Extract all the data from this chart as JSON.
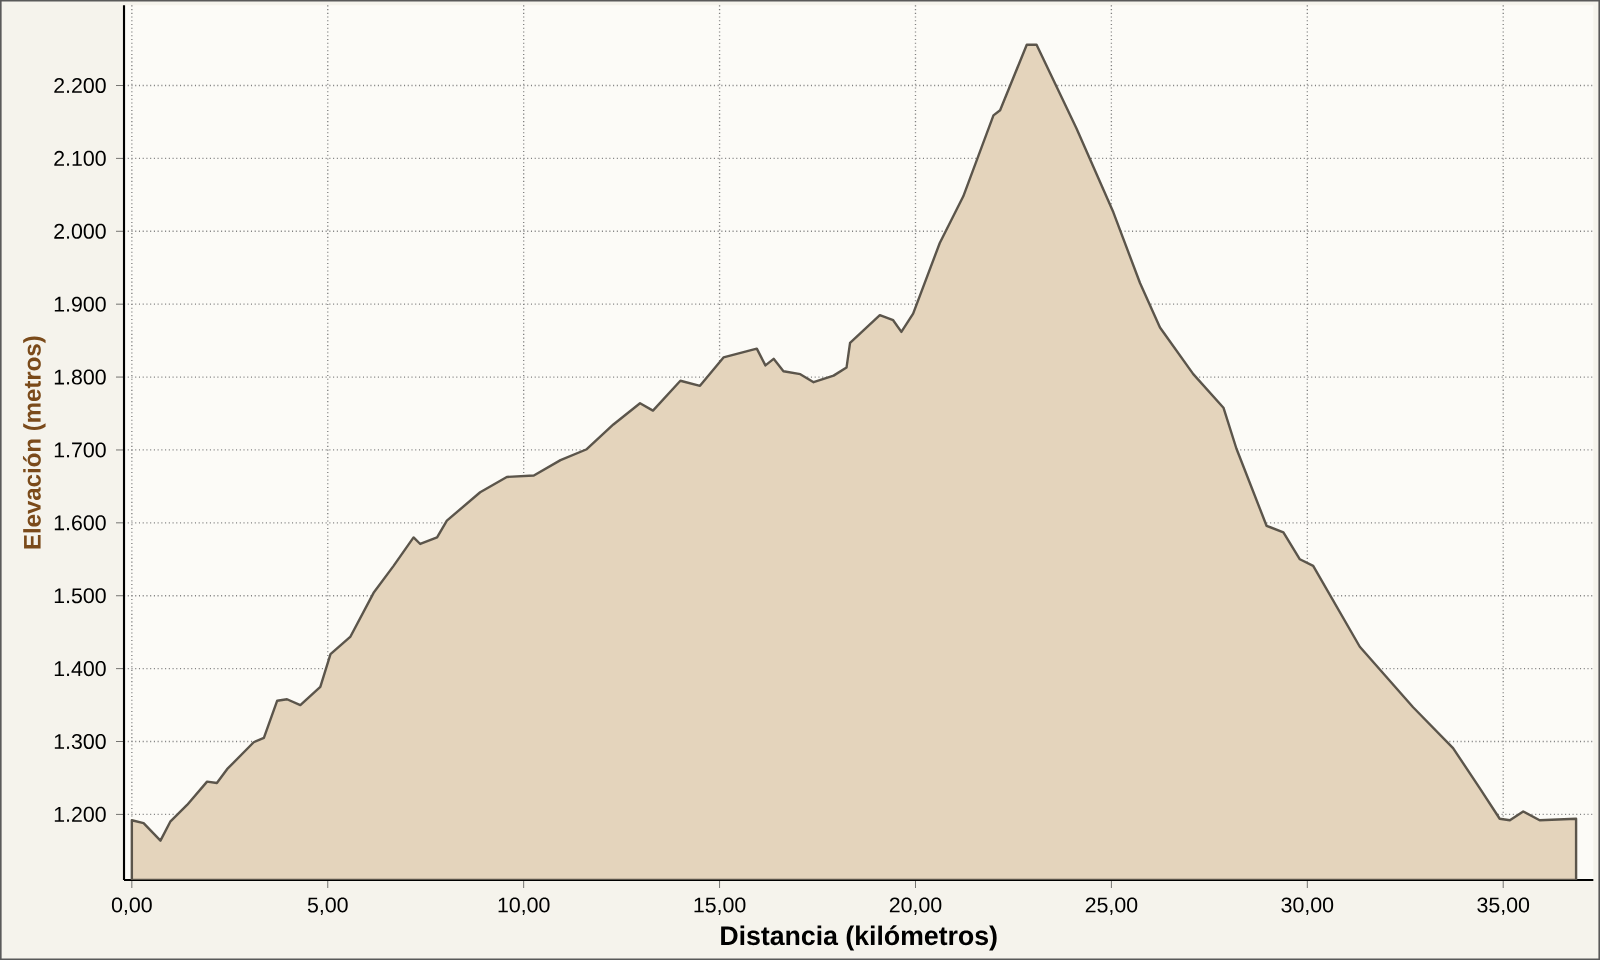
{
  "chart_data": {
    "type": "area",
    "xlabel": "Distancia (kilómetros)",
    "ylabel": "Elevación (metros)",
    "xlim": [
      -0.2,
      37.3
    ],
    "ylim": [
      1110,
      2310
    ],
    "xticks": [
      {
        "value": 0,
        "label": "0,00"
      },
      {
        "value": 5,
        "label": "5,00"
      },
      {
        "value": 10,
        "label": "10,00"
      },
      {
        "value": 15,
        "label": "15,00"
      },
      {
        "value": 20,
        "label": "20,00"
      },
      {
        "value": 25,
        "label": "25,00"
      },
      {
        "value": 30,
        "label": "30,00"
      },
      {
        "value": 35,
        "label": "35,00"
      }
    ],
    "yticks": [
      {
        "value": 1200,
        "label": "1.200"
      },
      {
        "value": 1300,
        "label": "1.300"
      },
      {
        "value": 1400,
        "label": "1.400"
      },
      {
        "value": 1500,
        "label": "1.500"
      },
      {
        "value": 1600,
        "label": "1.600"
      },
      {
        "value": 1700,
        "label": "1.700"
      },
      {
        "value": 1800,
        "label": "1.800"
      },
      {
        "value": 1900,
        "label": "1.900"
      },
      {
        "value": 2000,
        "label": "2.000"
      },
      {
        "value": 2100,
        "label": "2.100"
      },
      {
        "value": 2200,
        "label": "2.200"
      }
    ],
    "grid": true,
    "series": [
      {
        "color": "#e4d4bc",
        "x": [
          0.0,
          0.3,
          0.73,
          0.98,
          1.41,
          1.92,
          2.17,
          2.43,
          3.11,
          3.37,
          3.71,
          3.96,
          4.3,
          4.81,
          5.07,
          5.58,
          6.17,
          6.68,
          7.19,
          7.36,
          7.79,
          8.04,
          8.89,
          9.57,
          10.26,
          10.94,
          11.61,
          12.29,
          12.97,
          13.3,
          14.0,
          14.5,
          15.1,
          15.95,
          16.17,
          16.38,
          16.63,
          17.06,
          17.4,
          17.91,
          18.24,
          18.33,
          19.09,
          19.43,
          19.64,
          19.94,
          20.62,
          21.22,
          21.99,
          22.16,
          22.84,
          23.09,
          24.11,
          25.05,
          25.73,
          26.24,
          27.09,
          27.86,
          28.19,
          28.96,
          29.39,
          29.81,
          30.15,
          31.34,
          32.7,
          33.72,
          34.4,
          34.91,
          35.17,
          35.51,
          35.93,
          36.86
        ],
        "values": [
          1192,
          1188,
          1164,
          1190,
          1213,
          1245,
          1243,
          1262,
          1299,
          1305,
          1356,
          1358,
          1350,
          1375,
          1420,
          1444,
          1504,
          1541,
          1580,
          1571,
          1580,
          1603,
          1642,
          1663,
          1665,
          1686,
          1701,
          1735,
          1764,
          1754,
          1795,
          1788,
          1827,
          1839,
          1816,
          1825,
          1808,
          1804,
          1793,
          1802,
          1813,
          1847,
          1885,
          1878,
          1862,
          1887,
          1984,
          2048,
          2159,
          2166,
          2256,
          2256,
          2141,
          2026,
          1929,
          1868,
          1804,
          1758,
          1702,
          1596,
          1587,
          1550,
          1541,
          1430,
          1347,
          1291,
          1236,
          1194,
          1192,
          1204,
          1192,
          1194
        ]
      }
    ]
  }
}
